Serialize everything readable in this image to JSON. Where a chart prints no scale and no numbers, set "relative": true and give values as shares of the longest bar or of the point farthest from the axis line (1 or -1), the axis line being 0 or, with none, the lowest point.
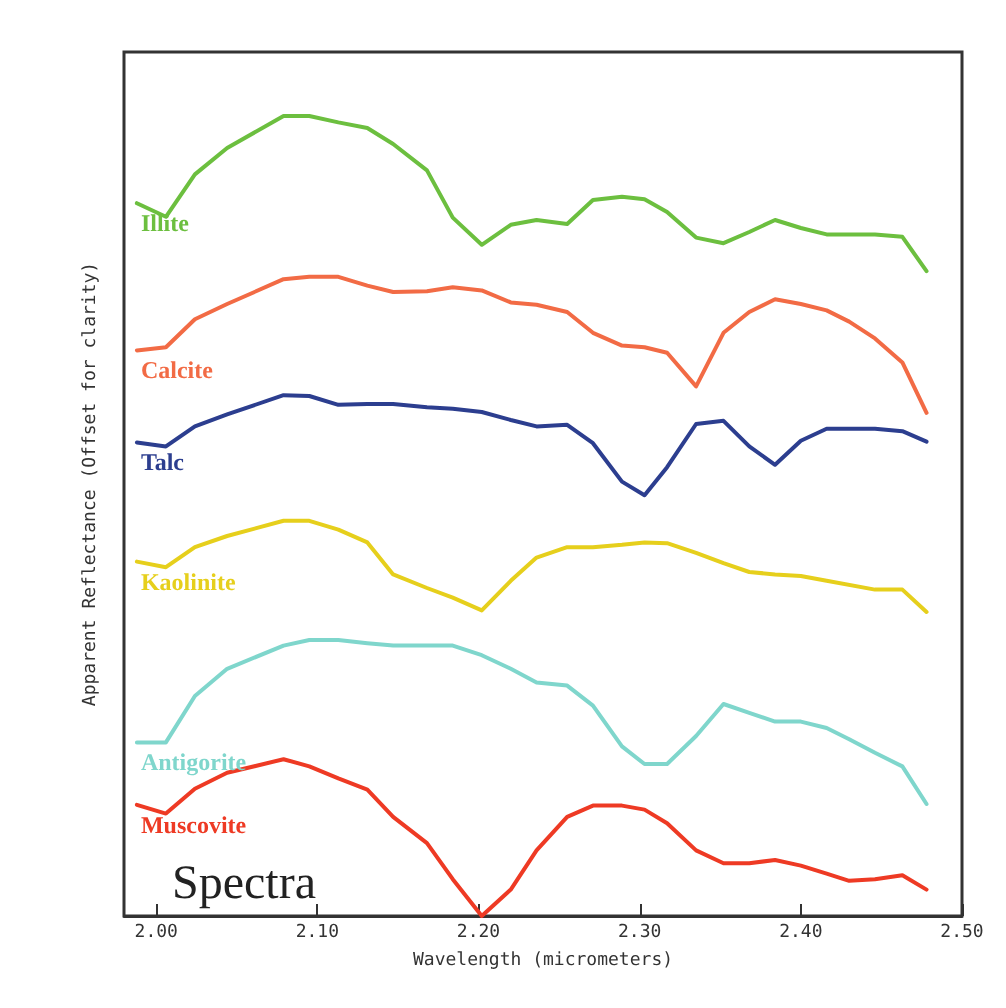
{
  "chart_data": {
    "type": "line",
    "xlabel": "Wavelength (micrometers)",
    "ylabel": "Apparent Reflectance (Offset for clarity)",
    "relative": true,
    "grid": false,
    "legend": false,
    "marker": "none",
    "line_style": "solid",
    "annotations": [
      "Spectra"
    ],
    "xlim": [
      1.98,
      2.5
    ],
    "xticks": [
      {
        "value": 2.0,
        "label": "2.00"
      },
      {
        "value": 2.1,
        "label": "2.10"
      },
      {
        "value": 2.2,
        "label": "2.20"
      },
      {
        "value": 2.3,
        "label": "2.30"
      },
      {
        "value": 2.4,
        "label": "2.40"
      },
      {
        "value": 2.5,
        "label": "2.50"
      }
    ],
    "x": [
      1.988,
      2.006,
      2.024,
      2.044,
      2.079,
      2.095,
      2.113,
      2.131,
      2.147,
      2.168,
      2.184,
      2.202,
      2.22,
      2.236,
      2.255,
      2.271,
      2.289,
      2.303,
      2.317,
      2.335,
      2.352,
      2.368,
      2.384,
      2.4,
      2.416,
      2.43,
      2.446,
      2.463,
      2.478
    ],
    "series": [
      {
        "name": "Illite",
        "color": "#6cbf3f",
        "x": [
          1.988,
          2.006,
          2.024,
          2.044,
          2.079,
          2.095,
          2.113,
          2.131,
          2.147,
          2.168,
          2.184,
          2.202,
          2.22,
          2.236,
          2.255,
          2.271,
          2.289,
          2.303,
          2.317,
          2.335,
          2.352,
          2.368,
          2.384,
          2.4,
          2.416,
          2.446,
          2.463,
          2.478
        ],
        "values": [
          0.891,
          0.874,
          0.927,
          0.96,
          1.0,
          1.0,
          0.992,
          0.985,
          0.965,
          0.932,
          0.873,
          0.839,
          0.864,
          0.87,
          0.865,
          0.895,
          0.899,
          0.896,
          0.88,
          0.848,
          0.841,
          0.855,
          0.87,
          0.86,
          0.852,
          0.852,
          0.849,
          0.806
        ]
      },
      {
        "name": "Calcite",
        "color": "#f26b45",
        "values": [
          0.707,
          0.711,
          0.746,
          0.765,
          0.796,
          0.799,
          0.799,
          0.788,
          0.78,
          0.781,
          0.786,
          0.782,
          0.767,
          0.764,
          0.755,
          0.729,
          0.713,
          0.711,
          0.704,
          0.662,
          0.729,
          0.755,
          0.771,
          0.765,
          0.757,
          0.743,
          0.722,
          0.692,
          0.629
        ]
      },
      {
        "name": "Talc",
        "color": "#2c3e8f",
        "x": [
          1.988,
          2.006,
          2.024,
          2.044,
          2.079,
          2.095,
          2.113,
          2.131,
          2.147,
          2.168,
          2.184,
          2.202,
          2.22,
          2.236,
          2.255,
          2.271,
          2.289,
          2.303,
          2.317,
          2.335,
          2.352,
          2.368,
          2.384,
          2.4,
          2.416,
          2.446,
          2.463,
          2.478
        ],
        "values": [
          0.592,
          0.587,
          0.612,
          0.627,
          0.651,
          0.65,
          0.639,
          0.64,
          0.64,
          0.636,
          0.634,
          0.63,
          0.62,
          0.612,
          0.614,
          0.591,
          0.543,
          0.526,
          0.561,
          0.615,
          0.619,
          0.587,
          0.564,
          0.594,
          0.609,
          0.609,
          0.606,
          0.593
        ]
      },
      {
        "name": "Kaolinite",
        "color": "#e6cf1c",
        "x": [
          1.988,
          2.006,
          2.024,
          2.044,
          2.079,
          2.095,
          2.113,
          2.131,
          2.147,
          2.168,
          2.184,
          2.202,
          2.22,
          2.236,
          2.255,
          2.271,
          2.289,
          2.303,
          2.317,
          2.335,
          2.352,
          2.368,
          2.384,
          2.4,
          2.416,
          2.446,
          2.463,
          2.478
        ],
        "values": [
          0.443,
          0.436,
          0.461,
          0.475,
          0.494,
          0.494,
          0.483,
          0.467,
          0.427,
          0.41,
          0.398,
          0.382,
          0.419,
          0.448,
          0.461,
          0.461,
          0.464,
          0.467,
          0.466,
          0.454,
          0.441,
          0.43,
          0.427,
          0.425,
          0.419,
          0.408,
          0.408,
          0.38
        ]
      },
      {
        "name": "Antigorite",
        "color": "#7fd6cc",
        "values": [
          0.217,
          0.217,
          0.275,
          0.309,
          0.338,
          0.345,
          0.345,
          0.341,
          0.338,
          0.338,
          0.338,
          0.326,
          0.309,
          0.292,
          0.288,
          0.263,
          0.212,
          0.19,
          0.19,
          0.225,
          0.265,
          0.254,
          0.243,
          0.243,
          0.235,
          0.221,
          0.204,
          0.187,
          0.14
        ]
      },
      {
        "name": "Muscovite",
        "color": "#ee3a24",
        "values": [
          0.139,
          0.128,
          0.159,
          0.179,
          0.196,
          0.187,
          0.172,
          0.158,
          0.124,
          0.091,
          0.046,
          0,
          0.033,
          0.082,
          0.124,
          0.138,
          0.138,
          0.133,
          0.116,
          0.082,
          0.066,
          0.066,
          0.07,
          0.063,
          0.053,
          0.044,
          0.046,
          0.051,
          0.033
        ]
      }
    ]
  }
}
